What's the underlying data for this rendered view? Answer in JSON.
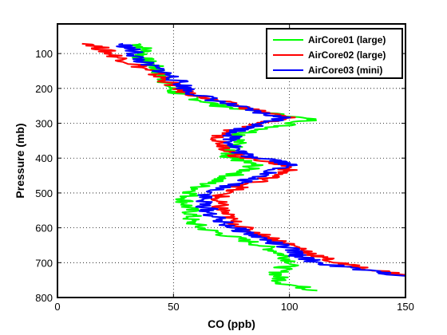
{
  "chart_data": {
    "type": "line",
    "title": "",
    "xlabel": "CO (ppb)",
    "ylabel": "Pressure (mb)",
    "xlim": [
      0,
      150
    ],
    "ylim": [
      800,
      15
    ],
    "y_reversed": true,
    "grid": "dotted",
    "legend_position": "top-right",
    "xticks": [
      0,
      50,
      100,
      150
    ],
    "yticks": [
      100,
      200,
      300,
      400,
      500,
      600,
      700,
      800
    ],
    "series": [
      {
        "name": "AirCore01 (large)",
        "color": "#00ff00",
        "points": [
          [
            35,
            72
          ],
          [
            38,
            90
          ],
          [
            36,
            110
          ],
          [
            40,
            130
          ],
          [
            44,
            150
          ],
          [
            46,
            170
          ],
          [
            48,
            190
          ],
          [
            50,
            210
          ],
          [
            60,
            230
          ],
          [
            70,
            250
          ],
          [
            90,
            270
          ],
          [
            110,
            290
          ],
          [
            95,
            310
          ],
          [
            80,
            330
          ],
          [
            78,
            350
          ],
          [
            76,
            370
          ],
          [
            75,
            385
          ],
          [
            70,
            395
          ],
          [
            78,
            405
          ],
          [
            85,
            420
          ],
          [
            80,
            440
          ],
          [
            70,
            460
          ],
          [
            62,
            480
          ],
          [
            58,
            500
          ],
          [
            55,
            520
          ],
          [
            56,
            540
          ],
          [
            58,
            560
          ],
          [
            57,
            580
          ],
          [
            62,
            600
          ],
          [
            72,
            620
          ],
          [
            83,
            640
          ],
          [
            92,
            660
          ],
          [
            98,
            680
          ],
          [
            102,
            700
          ],
          [
            96,
            720
          ],
          [
            95,
            740
          ],
          [
            98,
            760
          ],
          [
            112,
            780
          ]
        ]
      },
      {
        "name": "AirCore02 (large)",
        "color": "#ff0000",
        "points": [
          [
            15,
            72
          ],
          [
            20,
            90
          ],
          [
            26,
            110
          ],
          [
            33,
            130
          ],
          [
            40,
            150
          ],
          [
            45,
            170
          ],
          [
            50,
            190
          ],
          [
            55,
            210
          ],
          [
            65,
            230
          ],
          [
            78,
            250
          ],
          [
            90,
            270
          ],
          [
            100,
            285
          ],
          [
            88,
            300
          ],
          [
            75,
            320
          ],
          [
            70,
            340
          ],
          [
            72,
            360
          ],
          [
            75,
            380
          ],
          [
            78,
            395
          ],
          [
            92,
            410
          ],
          [
            100,
            425
          ],
          [
            98,
            440
          ],
          [
            90,
            460
          ],
          [
            80,
            480
          ],
          [
            72,
            500
          ],
          [
            68,
            520
          ],
          [
            70,
            540
          ],
          [
            72,
            560
          ],
          [
            75,
            580
          ],
          [
            80,
            600
          ],
          [
            88,
            620
          ],
          [
            97,
            640
          ],
          [
            105,
            660
          ],
          [
            112,
            680
          ],
          [
            120,
            700
          ],
          [
            135,
            720
          ],
          [
            150,
            735
          ]
        ]
      },
      {
        "name": "AirCore03 (mini)",
        "color": "#0000ff",
        "points": [
          [
            28,
            72
          ],
          [
            32,
            90
          ],
          [
            34,
            110
          ],
          [
            38,
            130
          ],
          [
            45,
            150
          ],
          [
            50,
            170
          ],
          [
            54,
            190
          ],
          [
            57,
            210
          ],
          [
            66,
            230
          ],
          [
            76,
            250
          ],
          [
            87,
            270
          ],
          [
            98,
            285
          ],
          [
            90,
            300
          ],
          [
            78,
            320
          ],
          [
            75,
            340
          ],
          [
            76,
            360
          ],
          [
            78,
            380
          ],
          [
            82,
            395
          ],
          [
            95,
            405
          ],
          [
            100,
            420
          ],
          [
            92,
            440
          ],
          [
            83,
            460
          ],
          [
            74,
            480
          ],
          [
            66,
            500
          ],
          [
            62,
            520
          ],
          [
            64,
            540
          ],
          [
            66,
            560
          ],
          [
            70,
            580
          ],
          [
            76,
            600
          ],
          [
            84,
            620
          ],
          [
            92,
            640
          ],
          [
            100,
            660
          ],
          [
            104,
            680
          ],
          [
            112,
            700
          ],
          [
            130,
            720
          ],
          [
            150,
            738
          ]
        ]
      }
    ]
  }
}
